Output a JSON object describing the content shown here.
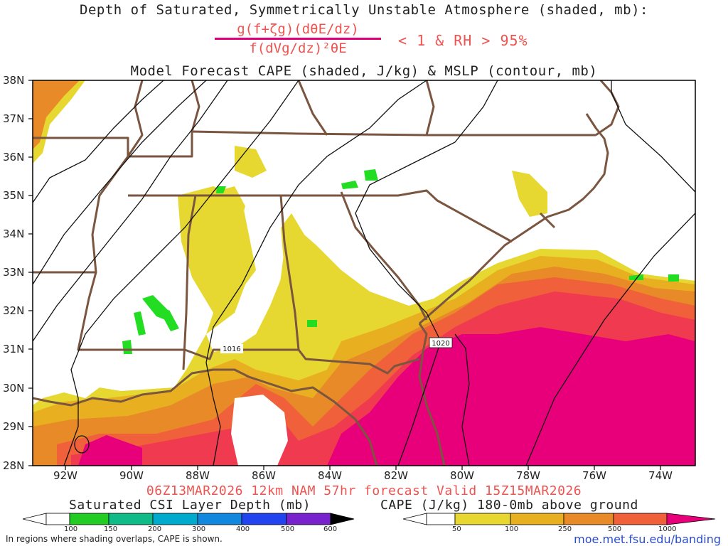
{
  "titles": {
    "line1": "Depth of Saturated, Symmetrically Unstable Atmosphere (shaded, mb):",
    "numerator": "g(f+ζg)(dθE/dz)",
    "denominator": "f(dVg/dz)²θE",
    "condition": "< 1 & RH > 95%",
    "line3": "Model Forecast CAPE (shaded, J/kg) & MSLP (contour, mb)",
    "valid": "06Z13MAR2026 12km NAM 57hr forecast Valid 15Z15MAR2026"
  },
  "map": {
    "lat_labels": [
      "38N",
      "37N",
      "36N",
      "35N",
      "34N",
      "33N",
      "32N",
      "31N",
      "30N",
      "29N",
      "28N"
    ],
    "lon_labels": [
      "92W",
      "90W",
      "88W",
      "86W",
      "84W",
      "82W",
      "80W",
      "78W",
      "76W",
      "74W"
    ],
    "isobar_labels": [
      "1016",
      "1020"
    ],
    "colors": {
      "cape_50": "#e6d830",
      "cape_100": "#e8b020",
      "cape_250": "#e88a28",
      "cape_500": "#f0603a",
      "cape_750": "#f03a50",
      "cape_1000": "#e8007a",
      "csi_green": "#22dd22",
      "borders": "#7a5540",
      "isobars": "#111111"
    }
  },
  "colorbars": {
    "csi": {
      "title": "Saturated CSI Layer Depth (mb)",
      "ticks": [
        "100",
        "150",
        "200",
        "300",
        "400",
        "500",
        "600"
      ],
      "colors": [
        "#ffffff",
        "#22cc22",
        "#11bb88",
        "#00aacc",
        "#1188dd",
        "#2244ee",
        "#5522dd",
        "#9922cc",
        "#000000"
      ]
    },
    "cape": {
      "title": "CAPE (J/kg) 180-0mb above ground",
      "ticks": [
        "50",
        "100",
        "250",
        "500",
        "1000"
      ],
      "colors": [
        "#ffffff",
        "#e6d830",
        "#e8b020",
        "#e88a28",
        "#f0603a",
        "#f03a50",
        "#e8007a"
      ]
    }
  },
  "footer": {
    "note": "In regions where shading overlaps, CAPE is shown.",
    "credit": "moe.met.fsu.edu/banding"
  }
}
